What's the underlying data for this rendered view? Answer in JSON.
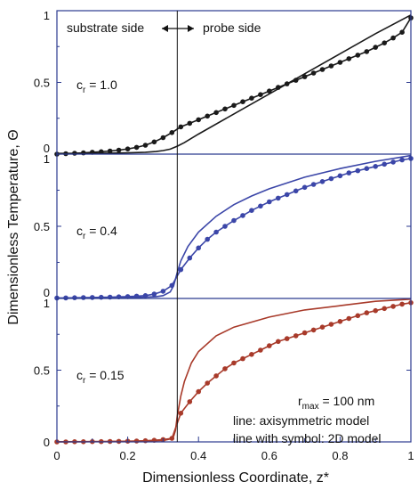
{
  "chart_data": {
    "type": "line",
    "ylabel": "Dimensionless Temperature, Θ",
    "xlabel": "Dimensionless Coordinate, z*",
    "xlim": [
      0,
      1
    ],
    "ylim": [
      0,
      1
    ],
    "x_ticks": [
      "0",
      "0.2",
      "0.4",
      "0.6",
      "0.8",
      "1"
    ],
    "y_ticks": [
      "0",
      "0.5",
      "1"
    ],
    "interface_x": 0.34,
    "top_labels": {
      "left": "substrate side",
      "right": "probe side"
    },
    "legend_note": {
      "rmax_main": "r",
      "rmax_sub": "max",
      "rmax_value": " = 100 nm",
      "line1": "line: axisymmetric model",
      "line2": "line with symbol: 2D model"
    },
    "panels": [
      {
        "label_c": "c",
        "label_sub": "r",
        "label_value": " = 1.0",
        "color": "#1a1a1a",
        "series": [
          {
            "model": "axisymmetric",
            "style": "line",
            "x": [
              0,
              0.05,
              0.1,
              0.15,
              0.2,
              0.25,
              0.28,
              0.3,
              0.32,
              0.34,
              0.36,
              0.4,
              0.5,
              0.6,
              0.7,
              0.8,
              0.9,
              1.0
            ],
            "y": [
              0.005,
              0.005,
              0.006,
              0.007,
              0.009,
              0.013,
              0.018,
              0.025,
              0.035,
              0.055,
              0.08,
              0.14,
              0.28,
              0.42,
              0.56,
              0.7,
              0.84,
              0.97
            ]
          },
          {
            "model": "2D",
            "style": "line-symbol",
            "x": [
              0,
              0.025,
              0.05,
              0.075,
              0.1,
              0.125,
              0.15,
              0.175,
              0.2,
              0.225,
              0.25,
              0.275,
              0.3,
              0.325,
              0.35,
              0.375,
              0.4,
              0.425,
              0.45,
              0.475,
              0.5,
              0.525,
              0.55,
              0.575,
              0.6,
              0.625,
              0.65,
              0.675,
              0.7,
              0.725,
              0.75,
              0.775,
              0.8,
              0.825,
              0.85,
              0.875,
              0.9,
              0.925,
              0.95,
              0.975,
              1.0
            ],
            "y": [
              0.0,
              0.003,
              0.006,
              0.009,
              0.013,
              0.017,
              0.022,
              0.028,
              0.036,
              0.047,
              0.062,
              0.085,
              0.115,
              0.15,
              0.19,
              0.215,
              0.24,
              0.265,
              0.29,
              0.315,
              0.34,
              0.365,
              0.39,
              0.415,
              0.44,
              0.465,
              0.49,
              0.515,
              0.54,
              0.565,
              0.59,
              0.615,
              0.64,
              0.665,
              0.69,
              0.715,
              0.745,
              0.775,
              0.81,
              0.85,
              0.95
            ]
          }
        ]
      },
      {
        "label_c": "c",
        "label_sub": "r",
        "label_value": " = 0.4",
        "color": "#3b46a8",
        "series": [
          {
            "model": "axisymmetric",
            "style": "line",
            "x": [
              0,
              0.1,
              0.2,
              0.28,
              0.3,
              0.32,
              0.33,
              0.34,
              0.35,
              0.37,
              0.4,
              0.45,
              0.5,
              0.55,
              0.6,
              0.7,
              0.8,
              0.9,
              1.0
            ],
            "y": [
              0.002,
              0.003,
              0.005,
              0.012,
              0.02,
              0.045,
              0.09,
              0.18,
              0.26,
              0.36,
              0.46,
              0.57,
              0.65,
              0.71,
              0.76,
              0.84,
              0.9,
              0.95,
              0.99
            ]
          },
          {
            "model": "2D",
            "style": "line-symbol",
            "x": [
              0,
              0.025,
              0.05,
              0.075,
              0.1,
              0.125,
              0.15,
              0.175,
              0.2,
              0.225,
              0.25,
              0.275,
              0.3,
              0.325,
              0.35,
              0.375,
              0.4,
              0.425,
              0.45,
              0.475,
              0.5,
              0.525,
              0.55,
              0.575,
              0.6,
              0.625,
              0.65,
              0.675,
              0.7,
              0.725,
              0.75,
              0.775,
              0.8,
              0.825,
              0.85,
              0.875,
              0.9,
              0.925,
              0.95,
              0.975,
              1.0
            ],
            "y": [
              0.003,
              0.004,
              0.005,
              0.006,
              0.007,
              0.008,
              0.009,
              0.011,
              0.013,
              0.016,
              0.02,
              0.03,
              0.05,
              0.09,
              0.2,
              0.28,
              0.35,
              0.41,
              0.46,
              0.5,
              0.54,
              0.575,
              0.61,
              0.64,
              0.67,
              0.695,
              0.72,
              0.745,
              0.77,
              0.79,
              0.81,
              0.83,
              0.85,
              0.87,
              0.885,
              0.9,
              0.915,
              0.93,
              0.945,
              0.96,
              0.97
            ]
          }
        ]
      },
      {
        "label_c": "c",
        "label_sub": "r",
        "label_value": " = 0.15",
        "color": "#a83a2a",
        "series": [
          {
            "model": "axisymmetric",
            "style": "line",
            "x": [
              0,
              0.1,
              0.2,
              0.3,
              0.32,
              0.33,
              0.335,
              0.34,
              0.35,
              0.36,
              0.38,
              0.4,
              0.45,
              0.5,
              0.6,
              0.7,
              0.8,
              0.9,
              1.0
            ],
            "y": [
              0.001,
              0.002,
              0.004,
              0.01,
              0.02,
              0.04,
              0.08,
              0.18,
              0.32,
              0.42,
              0.55,
              0.63,
              0.74,
              0.8,
              0.87,
              0.92,
              0.95,
              0.98,
              0.995
            ]
          },
          {
            "model": "2D",
            "style": "line-symbol",
            "x": [
              0,
              0.025,
              0.05,
              0.075,
              0.1,
              0.125,
              0.15,
              0.175,
              0.2,
              0.225,
              0.25,
              0.275,
              0.3,
              0.325,
              0.35,
              0.375,
              0.4,
              0.425,
              0.45,
              0.475,
              0.5,
              0.525,
              0.55,
              0.575,
              0.6,
              0.625,
              0.65,
              0.675,
              0.7,
              0.725,
              0.75,
              0.775,
              0.8,
              0.825,
              0.85,
              0.875,
              0.9,
              0.925,
              0.95,
              0.975,
              1.0
            ],
            "y": [
              0.0,
              0.0,
              0.001,
              0.001,
              0.002,
              0.002,
              0.003,
              0.004,
              0.005,
              0.006,
              0.008,
              0.011,
              0.016,
              0.025,
              0.2,
              0.28,
              0.35,
              0.41,
              0.46,
              0.51,
              0.55,
              0.58,
              0.61,
              0.64,
              0.67,
              0.7,
              0.72,
              0.74,
              0.76,
              0.78,
              0.8,
              0.82,
              0.84,
              0.86,
              0.88,
              0.9,
              0.915,
              0.93,
              0.945,
              0.96,
              0.97
            ]
          }
        ]
      }
    ]
  }
}
